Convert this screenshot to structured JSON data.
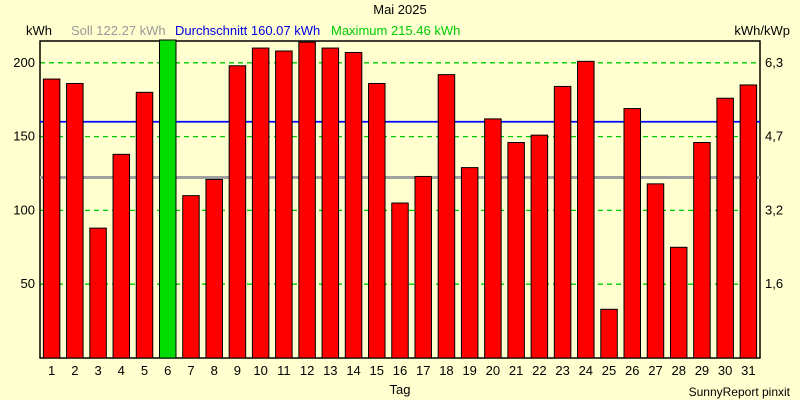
{
  "title": "Mai 2025",
  "legend": {
    "unit_left": "kWh",
    "soll": "Soll 122.27 kWh",
    "durchschnitt": "Durchschnitt 160.07 kWh",
    "maximum": "Maximum 215.46 kWh",
    "unit_right": "kWh/kWp"
  },
  "footer": {
    "xlabel": "Tag",
    "credit": "SunnyReport pinxit"
  },
  "colors": {
    "background": "#FFFFD0",
    "plot_background": "#FFFFD0",
    "bar_red": "#FF0000",
    "bar_green": "#00DC00",
    "bar_border": "#000000",
    "grid_green": "#00CC00",
    "soll_line_gray": "#A0A0A0",
    "durchschnitt_line_blue": "#0000FF",
    "soll_text": "#999999",
    "durchschnitt_text": "#0000DD",
    "maximum_text": "#00CC00",
    "axis_frame": "#000000",
    "text": "#000000"
  },
  "chart_data": {
    "type": "bar",
    "title": "Mai 2025",
    "xlabel": "Tag",
    "ylabel_left": "kWh",
    "ylabel_right": "kWh/kWp",
    "categories": [
      1,
      2,
      3,
      4,
      5,
      6,
      7,
      8,
      9,
      10,
      11,
      12,
      13,
      14,
      15,
      16,
      17,
      18,
      19,
      20,
      21,
      22,
      23,
      24,
      25,
      26,
      27,
      28,
      29,
      30,
      31
    ],
    "values": [
      189,
      186,
      88,
      138,
      180,
      215.46,
      110,
      121,
      198,
      210,
      208,
      214,
      210,
      207,
      186,
      105,
      123,
      192,
      129,
      162,
      146,
      151,
      184,
      201,
      33,
      169,
      118,
      75,
      146,
      176,
      185
    ],
    "highlight_index": 5,
    "highlight_meaning": "maximum-day",
    "soll_kwh": 122.27,
    "durchschnitt_kwh": 160.07,
    "maximum_kwh": 215.46,
    "left_axis_ticks": [
      50,
      100,
      150,
      200
    ],
    "right_axis_tick_labels": [
      "1,6",
      "3,2",
      "4,7",
      "6,3"
    ],
    "ylim": [
      0,
      215.46
    ],
    "grid": "horizontal-dashed-green",
    "legend_position": "top"
  }
}
